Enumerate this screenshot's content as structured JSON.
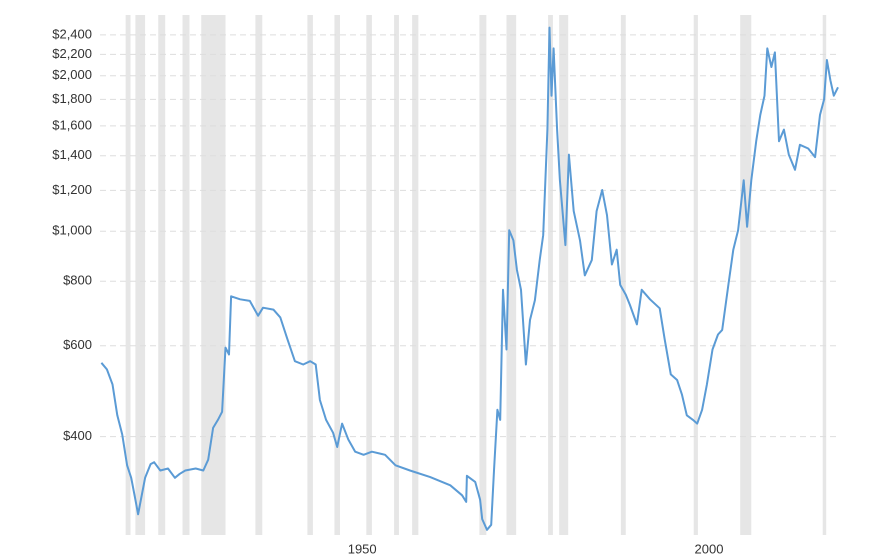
{
  "chart_data": {
    "type": "line",
    "log_scale": true,
    "grid": true,
    "color": "#5b9bd5",
    "shade_color": "#e6e6e6",
    "xlim": [
      1912.2,
      2018.6
    ],
    "xticks": [
      1950,
      2000
    ],
    "ylim": [
      258,
      2565
    ],
    "yticks": [
      {
        "value": 400,
        "label": "$400"
      },
      {
        "value": 600,
        "label": "$600"
      },
      {
        "value": 800,
        "label": "$800"
      },
      {
        "value": 1000,
        "label": "$1,000"
      },
      {
        "value": 1200,
        "label": "$1,200"
      },
      {
        "value": 1400,
        "label": "$1,400"
      },
      {
        "value": 1600,
        "label": "$1,600"
      },
      {
        "value": 1800,
        "label": "$1,800"
      },
      {
        "value": 2000,
        "label": "$2,000"
      },
      {
        "value": 2200,
        "label": "$2,200"
      },
      {
        "value": 2400,
        "label": "$2,400"
      }
    ],
    "recessions": [
      [
        1915.9,
        1916.6
      ],
      [
        1917.3,
        1918.7
      ],
      [
        1920.6,
        1921.6
      ],
      [
        1924.1,
        1925.1
      ],
      [
        1926.8,
        1930.3
      ],
      [
        1934.6,
        1935.6
      ],
      [
        1942.1,
        1942.9
      ],
      [
        1946.0,
        1946.8
      ],
      [
        1950.6,
        1951.4
      ],
      [
        1954.6,
        1955.3
      ],
      [
        1957.2,
        1958.1
      ],
      [
        1966.9,
        1967.9
      ],
      [
        1970.8,
        1972.2
      ],
      [
        1976.8,
        1977.5
      ],
      [
        1978.4,
        1979.7
      ],
      [
        1987.3,
        1988.0
      ],
      [
        1997.8,
        1998.4
      ],
      [
        2004.5,
        2006.1
      ],
      [
        2016.4,
        2016.9
      ]
    ],
    "x": [
      1912.4,
      1913.2,
      1914.0,
      1914.7,
      1915.4,
      1916.1,
      1916.7,
      1917.3,
      1917.7,
      1918.1,
      1918.7,
      1919.5,
      1920.0,
      1920.9,
      1922.0,
      1923.0,
      1923.7,
      1924.5,
      1926.0,
      1927.1,
      1927.8,
      1928.5,
      1929.2,
      1929.8,
      1930.3,
      1930.8,
      1931.1,
      1932.4,
      1933.8,
      1935.0,
      1935.7,
      1937.2,
      1938.2,
      1939.2,
      1940.3,
      1941.5,
      1942.5,
      1943.3,
      1943.9,
      1944.8,
      1945.8,
      1946.4,
      1947.1,
      1948.0,
      1949.0,
      1950.2,
      1951.4,
      1953.3,
      1954.8,
      1956.9,
      1959.8,
      1962.7,
      1964.4,
      1965.0,
      1965.1,
      1966.3,
      1967.0,
      1967.3,
      1968.0,
      1968.6,
      1969.0,
      1969.5,
      1969.9,
      1970.3,
      1970.8,
      1971.2,
      1971.8,
      1972.3,
      1972.9,
      1973.6,
      1974.2,
      1974.9,
      1975.6,
      1976.1,
      1976.7,
      1977.0,
      1977.3,
      1977.6,
      1978.1,
      1978.5,
      1979.3,
      1979.8,
      1980.5,
      1981.4,
      1982.1,
      1983.1,
      1983.8,
      1984.6,
      1985.3,
      1986.0,
      1986.7,
      1987.2,
      1988.0,
      1988.6,
      1989.6,
      1990.3,
      1991.5,
      1992.9,
      1993.6,
      1994.5,
      1995.4,
      1996.1,
      1996.8,
      1997.7,
      1998.3,
      1999.0,
      1999.7,
      2000.5,
      2001.3,
      2001.9,
      2002.8,
      2003.5,
      2004.2,
      2005.0,
      2005.5,
      2006.1,
      2006.8,
      2007.4,
      2008.0,
      2008.4,
      2009.0,
      2009.5,
      2010.1,
      2010.8,
      2011.5,
      2012.4,
      2013.1,
      2014.3,
      2015.3,
      2016.0,
      2016.6,
      2017.0,
      2017.5,
      2018.0,
      2018.6
    ],
    "values": [
      556,
      540,
      505,
      440,
      404,
      352,
      333,
      302,
      283,
      302,
      333,
      354,
      357,
      344,
      347,
      333,
      339,
      344,
      347,
      344,
      361,
      416,
      431,
      447,
      595,
      577,
      748,
      738,
      733,
      686,
      711,
      705,
      681,
      619,
      560,
      552,
      560,
      552,
      471,
      431,
      407,
      382,
      424,
      395,
      374,
      369,
      374,
      369,
      352,
      344,
      334,
      322,
      308,
      299,
      336,
      327,
      302,
      277,
      264,
      270,
      344,
      451,
      431,
      770,
      590,
      1004,
      960,
      842,
      770,
      552,
      673,
      735,
      879,
      983,
      1573,
      2480,
      1830,
      2260,
      1573,
      1255,
      940,
      1407,
      1094,
      960,
      821,
      879,
      1094,
      1202,
      1074,
      862,
      921,
      787,
      753,
      720,
      660,
      770,
      738,
      709,
      619,
      528,
      515,
      483,
      440,
      431,
      424,
      451,
      505,
      590,
      631,
      644,
      788,
      921,
      1004,
      1255,
      1020,
      1255,
      1494,
      1680,
      1830,
      2260,
      2080,
      2220,
      1494,
      1573,
      1407,
      1315,
      1470,
      1446,
      1392,
      1680,
      1800,
      2146,
      1960,
      1830,
      1900
    ]
  }
}
